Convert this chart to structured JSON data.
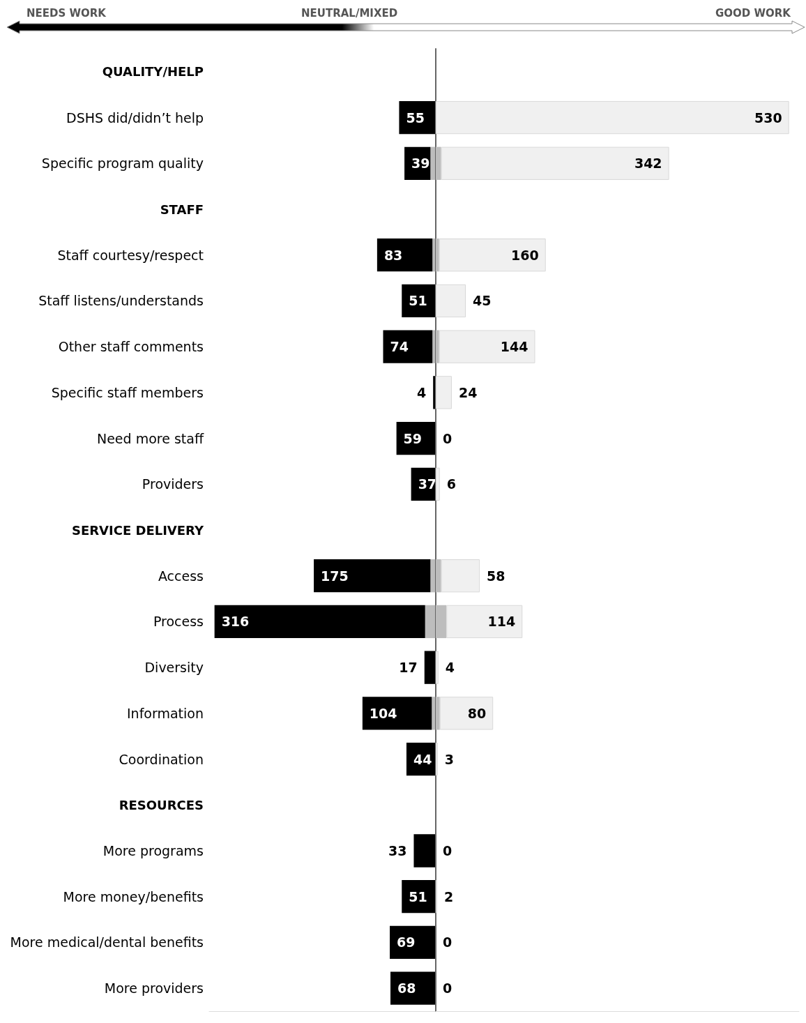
{
  "chart_data": [
    {
      "type": "bar",
      "orientation": "horizontal",
      "stacked": true,
      "annotations": [
        "NEEDS WORK",
        "NEUTRAL/MIXED",
        "GOOD WORK"
      ],
      "categories": [
        "QUALITY/HELP",
        "DSHS did/didn’t help",
        "Specific program quality",
        "STAFF",
        "Staff courtesy/respect",
        "Staff listens/understands",
        "Other staff comments",
        "Specific staff members",
        "Need more staff",
        "Providers",
        "SERVICE DELIVERY",
        "Access",
        "Process",
        "Diversity",
        "Information",
        "Coordination",
        "RESOURCES",
        "More programs",
        "More money/benefits",
        "More medical/dental benefits",
        "More providers"
      ],
      "series": [
        {
          "color": "#bdbdbd",
          "values": [
            null,
            0,
            8,
            null,
            5,
            0,
            5,
            0,
            0,
            0,
            null,
            8,
            16,
            0,
            6,
            0,
            null,
            0,
            0,
            0,
            0
          ]
        },
        {
          "color": "#000000",
          "values": [
            null,
            55,
            39,
            null,
            83,
            51,
            74,
            4,
            59,
            37,
            null,
            175,
            316,
            17,
            104,
            44,
            null,
            33,
            51,
            69,
            68
          ],
          "value_labels": [
            null,
            "55",
            "39",
            null,
            "83",
            "51",
            "74",
            "4",
            "59",
            "37",
            null,
            "175",
            "316",
            "17",
            "104",
            "44",
            null,
            "33",
            "51",
            "69",
            "68"
          ]
        }
      ],
      "xlim": [
        340,
        0
      ],
      "tick_labels": "y"
    },
    {
      "type": "bar",
      "orientation": "horizontal",
      "stacked": true,
      "categories": [
        null,
        null,
        null,
        null,
        null,
        null,
        null,
        null,
        null,
        null,
        null,
        null,
        null,
        null,
        null,
        null,
        null,
        null,
        null,
        null,
        null
      ],
      "series": [
        {
          "color": "#bdbdbd",
          "values": [
            null,
            0,
            8,
            null,
            5,
            0,
            5,
            0,
            0,
            0,
            null,
            8,
            16,
            0,
            6,
            0,
            null,
            0,
            0,
            0,
            0
          ]
        },
        {
          "color": "#f0f0f0",
          "values": [
            null,
            530,
            342,
            null,
            160,
            45,
            144,
            24,
            0,
            6,
            null,
            58,
            114,
            4,
            80,
            3,
            null,
            0,
            2,
            0,
            0
          ],
          "value_labels": [
            null,
            "530",
            "342",
            null,
            "160",
            "45",
            "144",
            "24",
            "0",
            "6",
            null,
            "58",
            "114",
            "4",
            "80",
            "3",
            null,
            "0",
            "2",
            "0",
            "0"
          ]
        }
      ],
      "xlim": [
        0,
        545
      ],
      "tick_labels": false
    }
  ]
}
